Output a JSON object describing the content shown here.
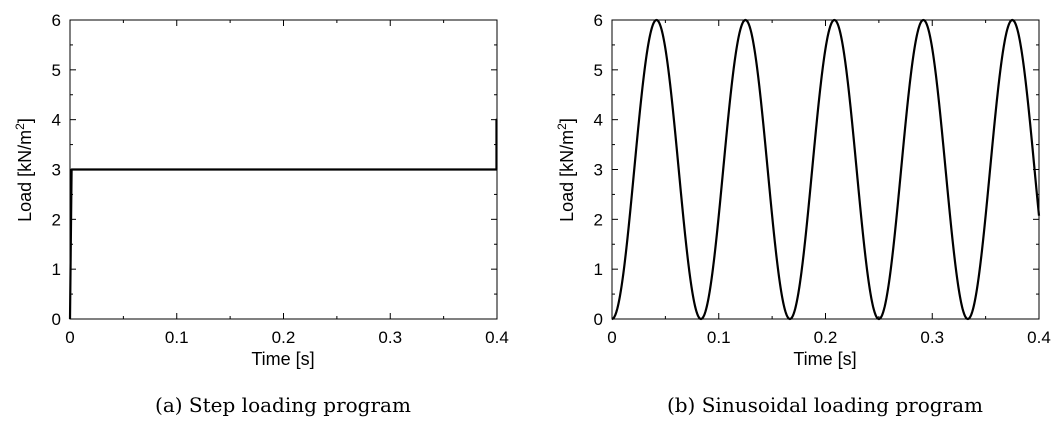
{
  "chart_data": [
    {
      "type": "line",
      "caption": "(a) Step loading program",
      "xlabel": "Time [s]",
      "ylabel": "Load [kN/m",
      "ylabel_sup": "2",
      "ylabel_end": "]",
      "xlim": [
        0,
        0.4
      ],
      "ylim": [
        0,
        6
      ],
      "xticks": [
        0,
        0.1,
        0.2,
        0.3,
        0.4
      ],
      "xtick_labels": [
        "0",
        "0.1",
        "0.2",
        "0.3",
        "0.4"
      ],
      "yticks": [
        0,
        1,
        2,
        3,
        4,
        5,
        6
      ],
      "ytick_labels": [
        "0",
        "1",
        "2",
        "3",
        "4",
        "5",
        "6"
      ],
      "grid": false,
      "series": [
        {
          "x": [
            0,
            0.0015,
            0.399,
            0.3995,
            0.3995,
            0.4
          ],
          "y": [
            0,
            3,
            3,
            3,
            4,
            4
          ]
        }
      ]
    },
    {
      "type": "line",
      "caption": "(b) Sinusoidal loading program",
      "xlabel": "Time [s]",
      "ylabel": "Load [kN/m",
      "ylabel_sup": "2",
      "ylabel_end": "]",
      "xlim": [
        0,
        0.4
      ],
      "ylim": [
        0,
        6
      ],
      "xticks": [
        0,
        0.1,
        0.2,
        0.3,
        0.4
      ],
      "xtick_labels": [
        "0",
        "0.1",
        "0.2",
        "0.3",
        "0.4"
      ],
      "yticks": [
        0,
        1,
        2,
        3,
        4,
        5,
        6
      ],
      "ytick_labels": [
        "0",
        "1",
        "2",
        "3",
        "4",
        "5",
        "6"
      ],
      "grid": false,
      "series": [
        {
          "function": "sinusoid",
          "mean": 3,
          "amplitude": 3,
          "frequency_hz": 12,
          "x_start": 0,
          "x_end": 0.4
        }
      ]
    }
  ]
}
